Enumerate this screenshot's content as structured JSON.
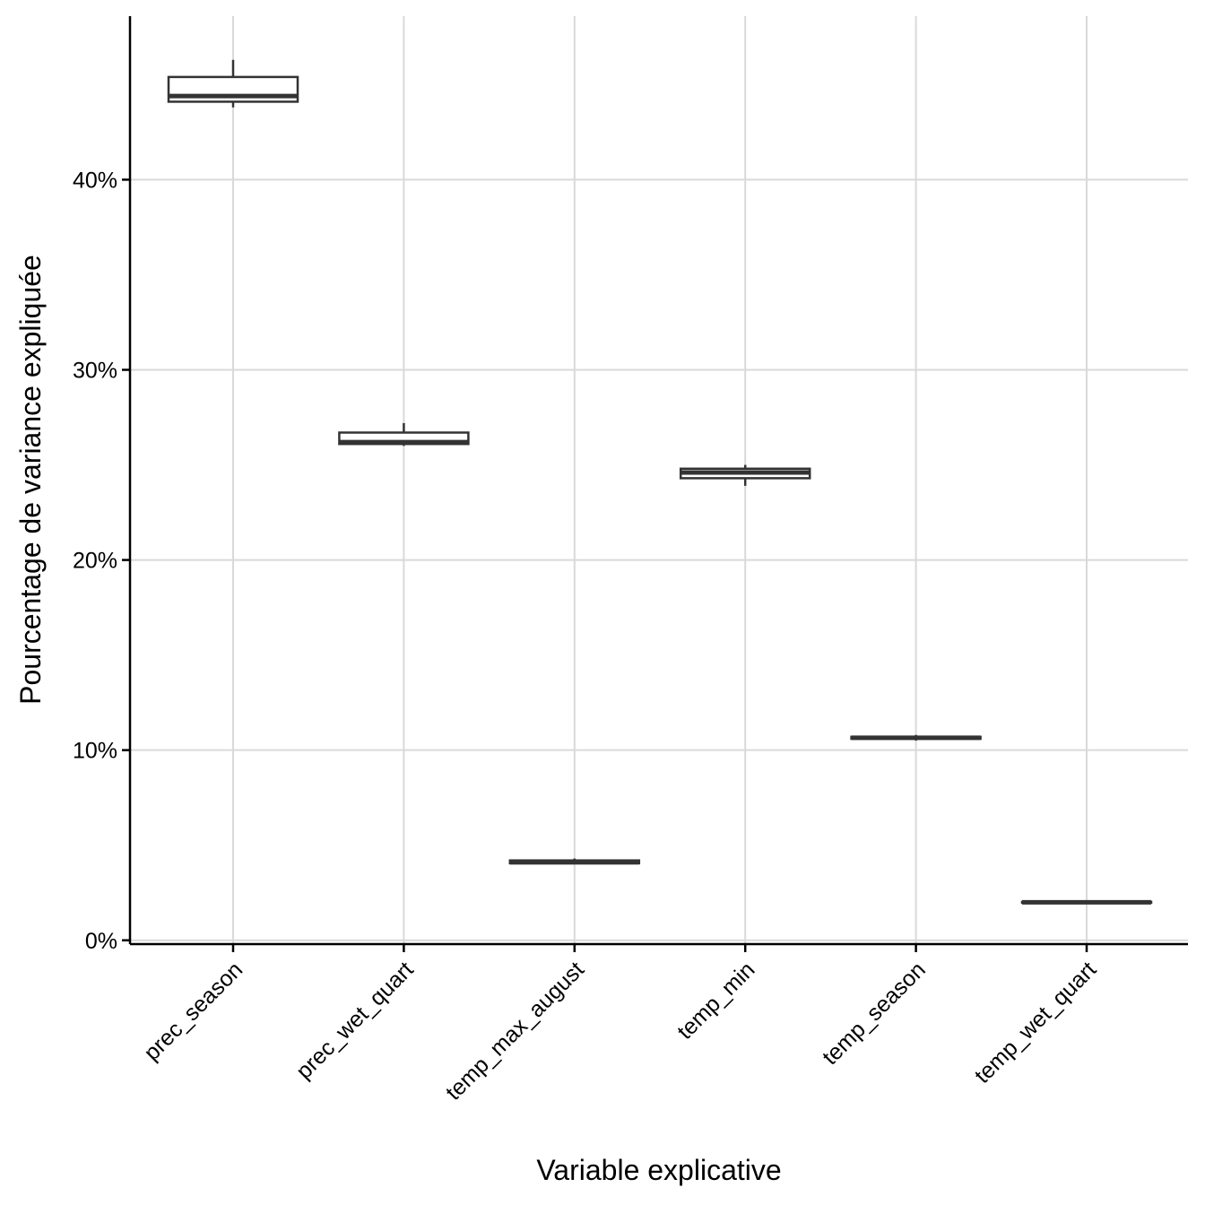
{
  "chart_data": {
    "type": "boxplot",
    "title": "",
    "xlabel": "Variable explicative",
    "ylabel": "Pourcentage de variance expliquée",
    "categories": [
      "prec_season",
      "prec_wet_quart",
      "temp_max_august",
      "temp_min",
      "temp_season",
      "temp_wet_quart"
    ],
    "boxes": [
      {
        "category": "prec_season",
        "min": 43.8,
        "q1": 44.1,
        "median": 44.4,
        "q3": 45.4,
        "max": 46.3
      },
      {
        "category": "prec_wet_quart",
        "min": 26.0,
        "q1": 26.1,
        "median": 26.2,
        "q3": 26.7,
        "max": 27.2
      },
      {
        "category": "temp_max_august",
        "min": 4.0,
        "q1": 4.05,
        "median": 4.1,
        "q3": 4.2,
        "max": 4.3
      },
      {
        "category": "temp_min",
        "min": 23.9,
        "q1": 24.3,
        "median": 24.6,
        "q3": 24.8,
        "max": 25.0
      },
      {
        "category": "temp_season",
        "min": 10.5,
        "q1": 10.6,
        "median": 10.65,
        "q3": 10.7,
        "max": 10.8
      },
      {
        "category": "temp_wet_quart",
        "min": 1.95,
        "q1": 1.98,
        "median": 2.0,
        "q3": 2.02,
        "max": 2.05
      }
    ],
    "y_ticks": [
      0,
      10,
      20,
      30,
      40
    ],
    "y_tick_labels": [
      "0%",
      "10%",
      "20%",
      "30%",
      "40%"
    ],
    "ylim": [
      -0.2,
      48.6
    ],
    "grid": true,
    "legend": "none",
    "colors": {
      "box_line": "#333333",
      "box_fill": "#ffffff",
      "grid": "#d9d9d9",
      "axis": "#000000"
    }
  }
}
